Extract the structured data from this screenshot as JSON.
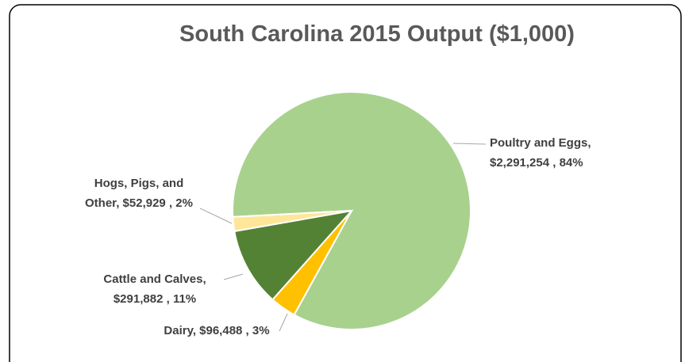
{
  "chart_data": {
    "type": "pie",
    "title": "South Carolina 2015 Output ($1,000)",
    "categories": [
      "Poultry and Eggs",
      "Dairy",
      "Cattle and Calves",
      "Hogs, Pigs, and Other"
    ],
    "values": [
      2291254,
      96488,
      291882,
      52929
    ],
    "value_labels": [
      "$2,291,254",
      "$96,488",
      "$291,882",
      "$52,929"
    ],
    "percents": [
      84,
      3,
      11,
      2
    ],
    "percent_labels": [
      "84%",
      "3%",
      "11%",
      "2%"
    ],
    "colors": [
      "#a9d18e",
      "#ffc000",
      "#548235",
      "#ffe699"
    ]
  }
}
